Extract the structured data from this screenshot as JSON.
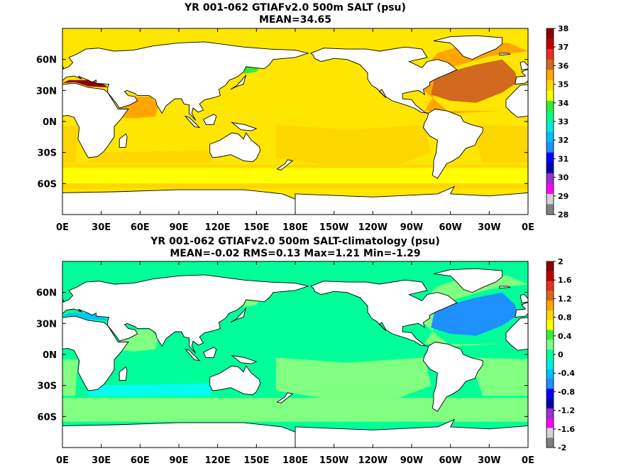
{
  "panels": [
    {
      "title_line1": "YR 001-062 GTIAFv2.0 500m SALT (psu)",
      "title_line2": "MEAN=34.65",
      "colorbar_labels": [
        "38",
        "37",
        "36",
        "35",
        "34",
        "33",
        "32",
        "31",
        "30",
        "29",
        "28"
      ],
      "colorbar_colors": [
        "#8b0000",
        "#c00000",
        "#e83020",
        "#d2691e",
        "#ffa500",
        "#ffd700",
        "#ffff00",
        "#33ee33",
        "#00ff80",
        "#00eedd",
        "#00bfff",
        "#1e90ff",
        "#0000ff",
        "#0000aa",
        "#9932cc",
        "#ff00ff",
        "#d3d3d3",
        "#808080"
      ],
      "ocean_base": "#ffe600",
      "region_colors": {
        "north_atlantic": "#d2691e",
        "atlantic_outer": "#ffa500",
        "arabian_sea": "#ffa500",
        "mediterranean": "#8b0000",
        "southern_ocean": "#ffd700",
        "pacific_south": "#ffd700",
        "indian_south": "#ffd700",
        "southern_band": "#ffff00",
        "south_atlantic": "#ffd700",
        "arctic": "#ffa500",
        "okhotsk": "#33ee33"
      }
    },
    {
      "title_line1": "YR 001-062 GTIAFv2.0 500m SALT-climatology (psu)",
      "title_line2": "MEAN=-0.02   RMS=0.13   Max=1.21   Min=-1.29",
      "colorbar_labels": [
        "2",
        "1.6",
        "1.2",
        "0.8",
        "0.4",
        "0",
        "-0.4",
        "-0.8",
        "-1.2",
        "-1.6",
        "-2"
      ],
      "colorbar_colors": [
        "#8b0000",
        "#c00000",
        "#e83020",
        "#d2691e",
        "#ffa500",
        "#ffd700",
        "#ffff00",
        "#33ee33",
        "#80ff80",
        "#00ff99",
        "#00eedd",
        "#00bfff",
        "#1e90ff",
        "#0000ff",
        "#0000aa",
        "#9932cc",
        "#ff00ff",
        "#d3d3d3",
        "#808080"
      ],
      "ocean_base": "#00ff99",
      "region_colors": {
        "north_atlantic": "#1e90ff",
        "atlantic_outer": "#80ff80",
        "arabian_sea": "#80ff80",
        "mediterranean": "#00bfff",
        "southern_ocean": "#80ff80",
        "pacific_south": "#80ff80",
        "indian_south": "#00ffee",
        "southern_band": "#80ff80",
        "south_atlantic": "#80ff80",
        "arctic": "#80ff80",
        "okhotsk": "#80ff80"
      }
    }
  ],
  "x_tick_labels": [
    "0E",
    "30E",
    "60E",
    "90E",
    "120E",
    "150E",
    "180E",
    "150W",
    "120W",
    "90W",
    "60W",
    "30W",
    "0E"
  ],
  "y_tick_labels": [
    "60N",
    "30N",
    "0N",
    "30S",
    "60S"
  ]
}
